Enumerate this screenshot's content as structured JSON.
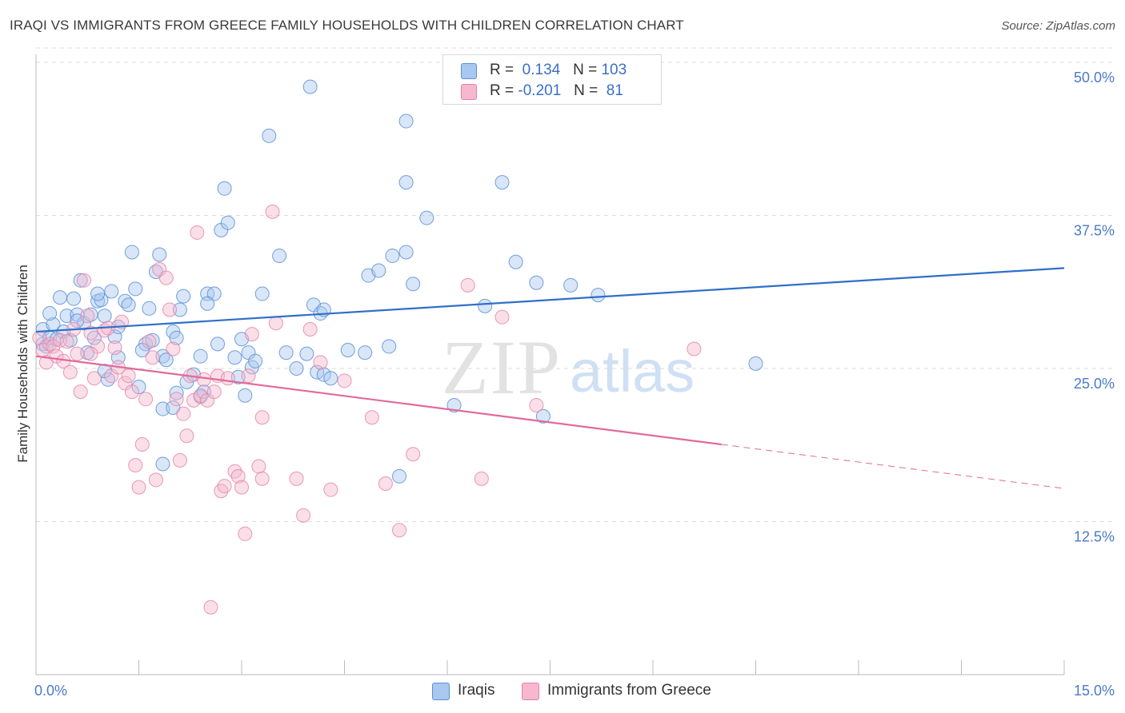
{
  "title": "IRAQI VS IMMIGRANTS FROM GREECE FAMILY HOUSEHOLDS WITH CHILDREN CORRELATION CHART",
  "source": "Source: ZipAtlas.com",
  "watermark": {
    "zip": "ZIP",
    "atlas": "atlas"
  },
  "colors": {
    "blue_fill": "#a8c8ef",
    "blue_stroke": "#5b8fd6",
    "blue_line": "#2f6fc8",
    "pink_fill": "#f5b8ce",
    "pink_stroke": "#e57fa3",
    "pink_line": "#e06a99",
    "grid": "#dcdcdc",
    "tick_label": "#4a7bc8"
  },
  "legend": {
    "r_label": "R =",
    "n_label": "N =",
    "rows": [
      {
        "r": " 0.134",
        "n": "103"
      },
      {
        "r": "-0.201",
        "n": " 81"
      }
    ]
  },
  "chart_data": {
    "type": "scatter",
    "xlabel": "",
    "ylabel": "Family Households with Children",
    "xlim": [
      0,
      15
    ],
    "ylim": [
      0,
      50
    ],
    "x_ticks": [
      "0.0%",
      "15.0%"
    ],
    "y_ticks": [
      "12.5%",
      "25.0%",
      "37.5%",
      "50.0%"
    ],
    "y_tick_values": [
      12.5,
      25.0,
      37.5,
      50.0
    ],
    "grid": "horizontal dashed",
    "legend_position": "top-center",
    "series": [
      {
        "name": "Iraqis",
        "color": "blue",
        "trend": {
          "x0": 0,
          "y0": 28.0,
          "x1": 15,
          "y1": 33.2,
          "solid_to": 15
        },
        "points": [
          [
            0.1,
            28.2
          ],
          [
            0.1,
            27.0
          ],
          [
            0.15,
            26.8
          ],
          [
            0.2,
            27.5
          ],
          [
            0.25,
            28.6
          ],
          [
            0.3,
            27.4
          ],
          [
            0.35,
            30.8
          ],
          [
            0.4,
            28.0
          ],
          [
            0.45,
            29.3
          ],
          [
            0.5,
            27.3
          ],
          [
            0.55,
            30.7
          ],
          [
            0.6,
            29.4
          ],
          [
            0.65,
            32.2
          ],
          [
            0.7,
            28.7
          ],
          [
            0.75,
            26.3
          ],
          [
            0.8,
            29.4
          ],
          [
            0.85,
            27.5
          ],
          [
            0.9,
            30.5
          ],
          [
            0.95,
            30.6
          ],
          [
            1.0,
            29.3
          ],
          [
            1.05,
            24.1
          ],
          [
            1.1,
            31.3
          ],
          [
            1.15,
            27.6
          ],
          [
            1.2,
            28.4
          ],
          [
            1.3,
            30.5
          ],
          [
            1.35,
            30.2
          ],
          [
            1.4,
            34.5
          ],
          [
            1.45,
            31.5
          ],
          [
            1.5,
            23.5
          ],
          [
            1.6,
            27.0
          ],
          [
            1.65,
            29.9
          ],
          [
            1.7,
            27.3
          ],
          [
            1.75,
            32.9
          ],
          [
            1.8,
            34.3
          ],
          [
            1.85,
            26.0
          ],
          [
            1.9,
            25.7
          ],
          [
            2.0,
            28.0
          ],
          [
            2.05,
            27.5
          ],
          [
            2.1,
            29.8
          ],
          [
            2.15,
            30.9
          ],
          [
            1.85,
            17.2
          ],
          [
            1.85,
            21.7
          ],
          [
            2.0,
            21.8
          ],
          [
            2.2,
            23.9
          ],
          [
            2.3,
            24.5
          ],
          [
            2.4,
            22.7
          ],
          [
            2.45,
            23.1
          ],
          [
            2.5,
            31.1
          ],
          [
            2.6,
            31.1
          ],
          [
            2.65,
            27.0
          ],
          [
            2.7,
            36.3
          ],
          [
            2.75,
            39.7
          ],
          [
            2.8,
            36.9
          ],
          [
            2.9,
            25.9
          ],
          [
            2.95,
            24.3
          ],
          [
            3.0,
            27.4
          ],
          [
            3.05,
            22.8
          ],
          [
            3.1,
            26.3
          ],
          [
            3.15,
            25.1
          ],
          [
            3.3,
            31.1
          ],
          [
            3.4,
            44.0
          ],
          [
            3.55,
            34.2
          ],
          [
            3.65,
            26.3
          ],
          [
            3.8,
            25.0
          ],
          [
            3.95,
            26.2
          ],
          [
            4.0,
            48.0
          ],
          [
            4.05,
            30.2
          ],
          [
            4.1,
            24.7
          ],
          [
            4.15,
            29.5
          ],
          [
            4.2,
            24.5
          ],
          [
            4.2,
            29.8
          ],
          [
            4.3,
            24.2
          ],
          [
            4.55,
            26.5
          ],
          [
            4.8,
            26.3
          ],
          [
            4.85,
            32.6
          ],
          [
            5.0,
            33.0
          ],
          [
            5.15,
            26.8
          ],
          [
            5.2,
            34.2
          ],
          [
            5.3,
            16.2
          ],
          [
            5.4,
            34.5
          ],
          [
            5.5,
            31.9
          ],
          [
            5.4,
            45.2
          ],
          [
            5.4,
            40.2
          ],
          [
            5.7,
            37.3
          ],
          [
            6.1,
            22.0
          ],
          [
            6.55,
            30.1
          ],
          [
            6.8,
            40.2
          ],
          [
            7.0,
            33.7
          ],
          [
            7.3,
            32.0
          ],
          [
            7.4,
            21.1
          ],
          [
            7.8,
            31.8
          ],
          [
            8.2,
            31.0
          ],
          [
            10.5,
            25.4
          ],
          [
            0.6,
            28.9
          ],
          [
            1.2,
            25.9
          ],
          [
            2.4,
            26.0
          ],
          [
            3.2,
            25.6
          ],
          [
            0.9,
            31.1
          ],
          [
            1.55,
            26.5
          ],
          [
            2.05,
            23.0
          ],
          [
            1.0,
            24.8
          ],
          [
            0.2,
            29.5
          ],
          [
            2.5,
            30.3
          ]
        ]
      },
      {
        "name": "Immigrants from Greece",
        "color": "pink",
        "trend": {
          "x0": 0,
          "y0": 26.0,
          "x1": 15,
          "y1": 15.2,
          "solid_to": 10
        }
      }
    ]
  },
  "pink_points": [
    [
      0.05,
      27.5
    ],
    [
      0.1,
      26.5
    ],
    [
      0.15,
      25.5
    ],
    [
      0.2,
      27.0
    ],
    [
      0.25,
      26.8
    ],
    [
      0.3,
      26.0
    ],
    [
      0.35,
      27.3
    ],
    [
      0.4,
      25.6
    ],
    [
      0.45,
      27.2
    ],
    [
      0.5,
      24.7
    ],
    [
      0.55,
      28.2
    ],
    [
      0.6,
      26.2
    ],
    [
      0.65,
      23.1
    ],
    [
      0.7,
      32.2
    ],
    [
      0.75,
      29.3
    ],
    [
      0.8,
      27.9
    ],
    [
      0.85,
      24.2
    ],
    [
      0.9,
      26.8
    ],
    [
      1.0,
      28.1
    ],
    [
      1.05,
      28.3
    ],
    [
      1.1,
      24.4
    ],
    [
      1.15,
      26.7
    ],
    [
      1.2,
      25.1
    ],
    [
      1.25,
      28.8
    ],
    [
      1.3,
      23.8
    ],
    [
      1.35,
      24.4
    ],
    [
      1.4,
      23.1
    ],
    [
      1.45,
      17.1
    ],
    [
      1.5,
      15.3
    ],
    [
      1.55,
      18.8
    ],
    [
      1.6,
      22.5
    ],
    [
      1.65,
      27.2
    ],
    [
      1.7,
      25.9
    ],
    [
      1.75,
      15.9
    ],
    [
      1.8,
      33.1
    ],
    [
      1.9,
      32.4
    ],
    [
      1.95,
      29.8
    ],
    [
      2.0,
      26.6
    ],
    [
      2.05,
      22.5
    ],
    [
      2.1,
      17.5
    ],
    [
      2.15,
      21.3
    ],
    [
      2.2,
      19.5
    ],
    [
      2.25,
      24.4
    ],
    [
      2.3,
      22.4
    ],
    [
      2.35,
      36.1
    ],
    [
      2.4,
      22.8
    ],
    [
      2.45,
      24.1
    ],
    [
      2.5,
      22.4
    ],
    [
      2.55,
      5.5
    ],
    [
      2.6,
      23.1
    ],
    [
      2.65,
      24.4
    ],
    [
      2.7,
      15.0
    ],
    [
      2.75,
      15.4
    ],
    [
      2.8,
      24.2
    ],
    [
      2.9,
      16.6
    ],
    [
      2.95,
      16.2
    ],
    [
      3.0,
      15.3
    ],
    [
      3.05,
      11.5
    ],
    [
      3.1,
      24.4
    ],
    [
      3.15,
      27.8
    ],
    [
      3.25,
      17.0
    ],
    [
      3.3,
      21.0
    ],
    [
      3.45,
      37.8
    ],
    [
      3.5,
      28.7
    ],
    [
      3.8,
      16.0
    ],
    [
      3.9,
      13.0
    ],
    [
      4.0,
      28.2
    ],
    [
      4.15,
      25.5
    ],
    [
      4.3,
      15.1
    ],
    [
      4.5,
      24.0
    ],
    [
      4.9,
      21.0
    ],
    [
      5.1,
      15.6
    ],
    [
      5.3,
      11.8
    ],
    [
      5.5,
      18.0
    ],
    [
      6.3,
      31.8
    ],
    [
      6.8,
      29.2
    ],
    [
      6.5,
      16.0
    ],
    [
      7.3,
      22.0
    ],
    [
      9.6,
      26.6
    ],
    [
      3.3,
      16.0
    ],
    [
      0.8,
      26.2
    ]
  ]
}
